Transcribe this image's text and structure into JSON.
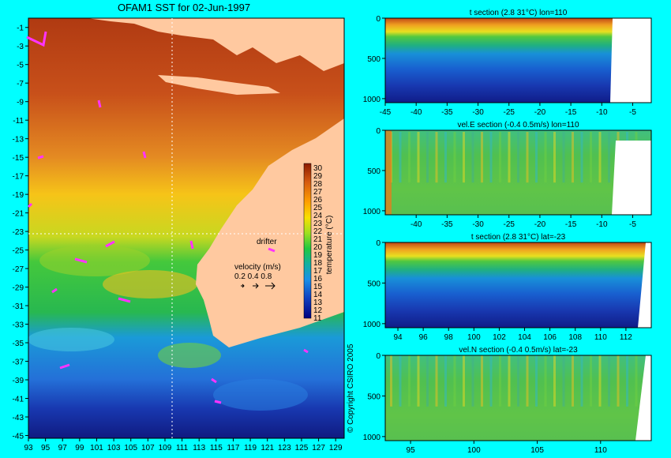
{
  "map": {
    "title": "OFAM1 SST for 02-Jun-1997",
    "x_ticks": [
      "93",
      "95",
      "97",
      "99",
      "101",
      "103",
      "105",
      "107",
      "109",
      "111",
      "113",
      "115",
      "117",
      "119",
      "121",
      "123",
      "125",
      "127",
      "129"
    ],
    "y_ticks": [
      "-1",
      "-3",
      "-5",
      "-7",
      "-9",
      "-11",
      "-13",
      "-15",
      "-17",
      "-19",
      "-21",
      "-23",
      "-25",
      "-27",
      "-29",
      "-31",
      "-33",
      "-35",
      "-37",
      "-39",
      "-41",
      "-43",
      "-45"
    ],
    "colorbar_ticks": [
      "30",
      "29",
      "28",
      "27",
      "26",
      "25",
      "24",
      "23",
      "22",
      "21",
      "20",
      "19",
      "18",
      "17",
      "16",
      "15",
      "14",
      "13",
      "12",
      "11"
    ],
    "colorbar_label": "temperature (°C)",
    "drifter_label": "drifter",
    "velocity_label": "velocity (m/s)",
    "velocity_scale": "0.2 0.4 0.8",
    "copyright": "© Copyright CSIRO 2005",
    "colors": {
      "warm": "#c0451a",
      "land": "#ffc9a0",
      "drifter": "#ff33ff"
    }
  },
  "chart_data": [
    {
      "type": "heatmap",
      "title": "t section (2.8     31°C) lon=110",
      "x_ticks": [
        "-45",
        "-40",
        "-35",
        "-30",
        "-25",
        "-20",
        "-15",
        "-10",
        "-5"
      ],
      "y_ticks": [
        "0",
        "500",
        "1000"
      ],
      "xlim": [
        -45,
        -2
      ],
      "ylim": [
        1050,
        0
      ]
    },
    {
      "type": "heatmap",
      "title": "vel.E section (-0.4     0.5m/s) lon=110",
      "x_ticks": [
        "-40",
        "-35",
        "-30",
        "-25",
        "-20",
        "-15",
        "-10",
        "-5"
      ],
      "y_ticks": [
        "0",
        "500",
        "1000"
      ],
      "xlim": [
        -45,
        -2
      ],
      "ylim": [
        1050,
        0
      ]
    },
    {
      "type": "heatmap",
      "title": "t section (2.8     31°C) lat=-23",
      "x_ticks": [
        "94",
        "96",
        "98",
        "100",
        "102",
        "104",
        "106",
        "108",
        "110",
        "112"
      ],
      "y_ticks": [
        "0",
        "500",
        "1000"
      ],
      "xlim": [
        93,
        114
      ],
      "ylim": [
        1050,
        0
      ]
    },
    {
      "type": "heatmap",
      "title": "vel.N section (-0.4     0.5m/s) lat=-23",
      "x_ticks": [
        "95",
        "100",
        "105",
        "110"
      ],
      "y_ticks": [
        "0",
        "500",
        "1000"
      ],
      "xlim": [
        93,
        114
      ],
      "ylim": [
        1050,
        0
      ]
    }
  ]
}
